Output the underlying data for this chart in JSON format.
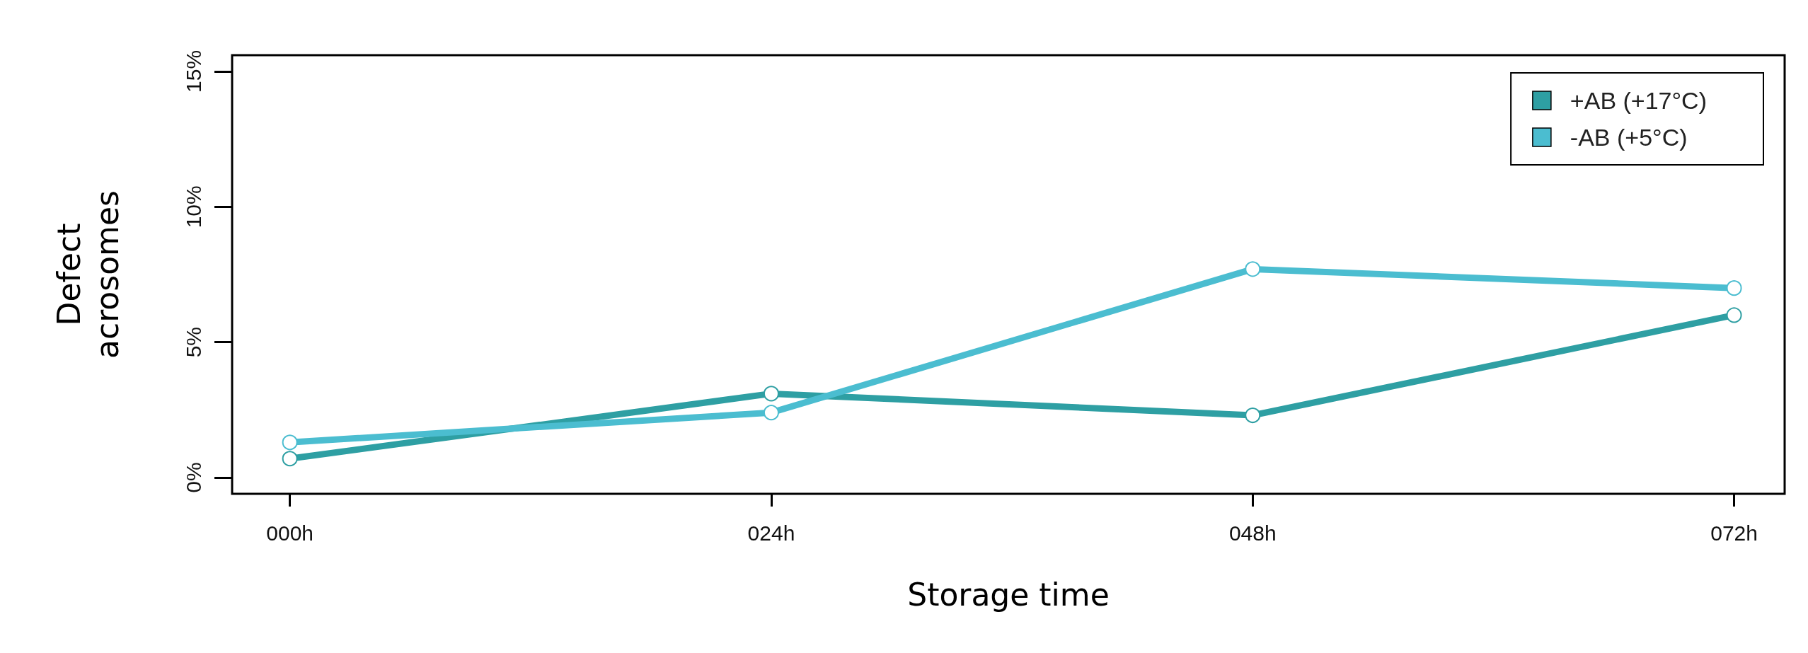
{
  "chart_data": {
    "type": "line",
    "xlabel": "Storage time",
    "ylabel": "Defect acrosomes",
    "categories": [
      "000h",
      "024h",
      "048h",
      "072h"
    ],
    "series": [
      {
        "name": "+AB (+17°C)",
        "color": "#2e9fa3",
        "values": [
          0.7,
          3.1,
          2.3,
          6.0
        ]
      },
      {
        "name": "-AB (+5°C)",
        "color": "#4bbdd0",
        "values": [
          1.3,
          2.4,
          7.7,
          7.0
        ]
      }
    ],
    "ylim": [
      -0.6,
      15.6
    ],
    "yticks": [
      {
        "value": 0,
        "label": "0%"
      },
      {
        "value": 5,
        "label": "5%"
      },
      {
        "value": 10,
        "label": "10%"
      },
      {
        "value": 15,
        "label": "15%"
      }
    ],
    "grid": false,
    "legend": "top right",
    "marker": "circle",
    "line_style": "solid"
  }
}
